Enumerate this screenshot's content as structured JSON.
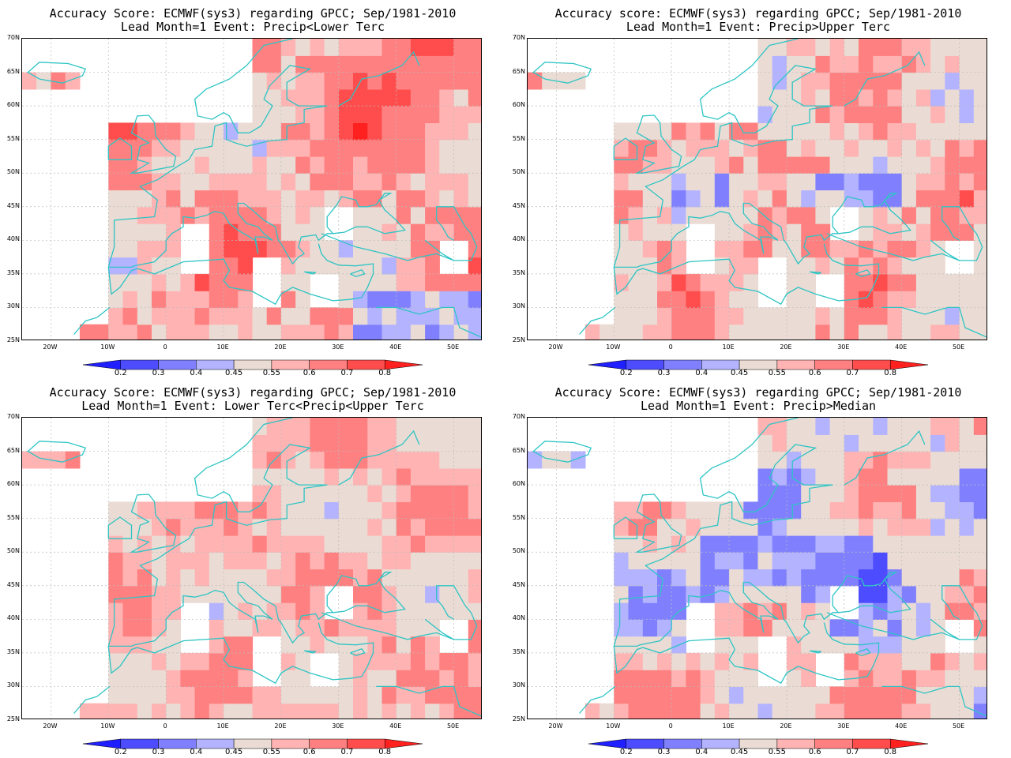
{
  "panels": [
    {
      "title_line1": "Accuracy Score: ECMWF(sys3) regarding GPCC; Sep/1981-2010",
      "title_line2": "Lead Month=1 Event: Precip<Lower Terc",
      "pattern": "lower"
    },
    {
      "title_line1": "Accuracy score: ECMWF(sys3) regarding GPCC; Sep/1981-2010",
      "title_line2": "Lead Month=1 Event: Precip>Upper Terc",
      "pattern": "upper"
    },
    {
      "title_line1": "Accuracy Score: ECMWF(sys3) regarding GPCC; Sep/1981-2010",
      "title_line2": "Lead Month=1 Event: Lower Terc<Precip<Upper Terc",
      "pattern": "middle"
    },
    {
      "title_line1": "Accuracy Score: ECMWF(sys3) regarding GPCC; Sep/1981-2010",
      "title_line2": "Lead Month=1 Event: Precip>Median",
      "pattern": "median"
    }
  ],
  "lat_ticks": [
    "70N",
    "65N",
    "60N",
    "55N",
    "50N",
    "45N",
    "40N",
    "35N",
    "30N",
    "25N"
  ],
  "lon_ticks": [
    "20W",
    "10W",
    "0",
    "10E",
    "20E",
    "30E",
    "40E",
    "50E"
  ],
  "colorbar": {
    "labels": [
      "0.2",
      "0.3",
      "0.4",
      "0.45",
      "0.55",
      "0.6",
      "0.7",
      "0.8"
    ],
    "colors": [
      "#1f1fff",
      "#4d4dff",
      "#8080ff",
      "#b3b3ff",
      "#eadcd4",
      "#ffb3b3",
      "#ff8080",
      "#ff4d4d",
      "#ff2020"
    ]
  },
  "colors": {
    "coastline": "#2ec4c4",
    "grid": "#bbbbbb"
  }
}
